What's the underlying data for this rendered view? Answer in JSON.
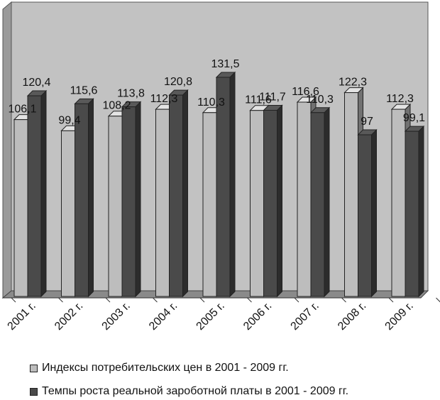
{
  "chart_data": {
    "type": "bar",
    "title": "",
    "xlabel": "",
    "ylabel": "",
    "ylim": [
      0,
      140
    ],
    "grid": false,
    "legend_position": "bottom",
    "categories": [
      "2001 г.",
      "2002 г.",
      "2003 г.",
      "2004 г.",
      "2005 г.",
      "2006 г.",
      "2007 г.",
      "2008 г.",
      "2009 г."
    ],
    "series": [
      {
        "name": "Индексы потребительских цен в 2001  -  2009 гг.",
        "color": "#bdbdbd",
        "values": [
          106.1,
          99.4,
          108.2,
          112.3,
          110.3,
          111.6,
          116.6,
          122.3,
          112.3
        ],
        "labels": [
          "106,1",
          "99,4",
          "108,2",
          "112,3",
          "110,3",
          "111,6",
          "116,6",
          "122,3",
          "112,3"
        ]
      },
      {
        "name": "Темпы роста реальной зароботной платы в 2001  -  2009 гг.",
        "color": "#4a4a4a",
        "values": [
          120.4,
          115.6,
          113.8,
          120.8,
          131.5,
          111.7,
          110.3,
          97,
          99.1
        ],
        "labels": [
          "120,4",
          "115,6",
          "113,8",
          "120,8",
          "131,5",
          "111,7",
          "110,3",
          "97",
          "99,1"
        ]
      }
    ]
  }
}
